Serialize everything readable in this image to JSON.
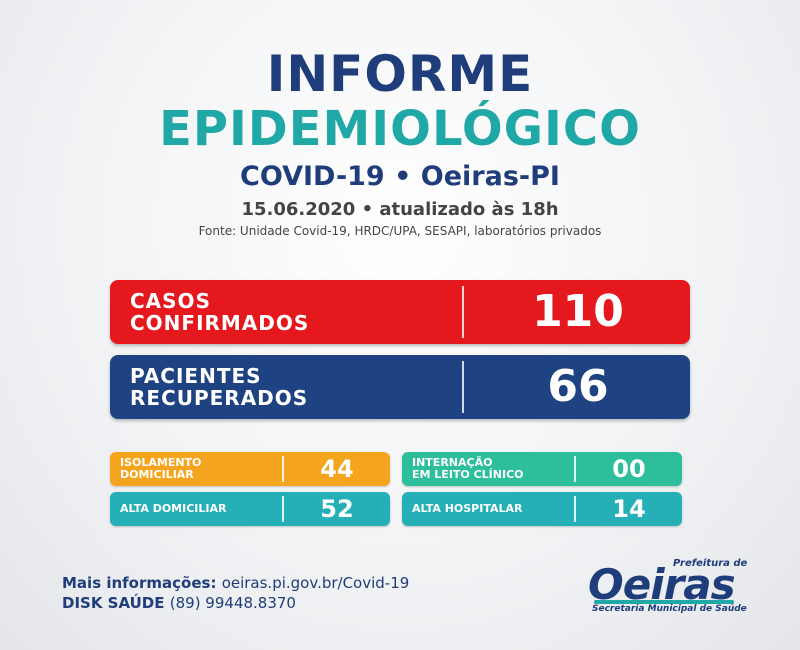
{
  "header": {
    "title_line1": "INFORME",
    "title_line2": "EPIDEMIOLÓGICO",
    "subtitle": "COVID-19 • Oeiras-PI",
    "date": "15.06.2020 • atualizado às 18h",
    "source": "Fonte: Unidade Covid-19, HRDC/UPA, SESAPI, laboratórios privados"
  },
  "stats": {
    "confirmed": {
      "label_line1": "CASOS",
      "label_line2": "CONFIRMADOS",
      "value": "110",
      "color": "#e5181e"
    },
    "recovered": {
      "label_line1": "PACIENTES",
      "label_line2": "RECUPERADOS",
      "value": "66",
      "color": "#1f4282"
    },
    "home_isolation": {
      "label_line1": "ISOLAMENTO",
      "label_line2": "DOMICILIAR",
      "value": "44",
      "color": "#f4a51d"
    },
    "hospitalized": {
      "label_line1": "INTERNAÇÃO",
      "label_line2": "EM LEITO CLÍNICO",
      "value": "00",
      "color": "#2dbf9b"
    },
    "home_discharge": {
      "label": "ALTA DOMICILIAR",
      "value": "52",
      "color": "#25b0b8"
    },
    "hospital_discharge": {
      "label": "ALTA HOSPITALAR",
      "value": "14",
      "color": "#25b0b8"
    }
  },
  "footer": {
    "info_label": "Mais informações:",
    "info_value": "oeiras.pi.gov.br/Covid-19",
    "phone_label": "DISK SAÚDE",
    "phone_value": "(89) 99448.8370"
  },
  "logo": {
    "prefix": "Prefeitura de",
    "name": "Oeiras",
    "subtitle": "Secretaria Municipal de Saúde"
  }
}
